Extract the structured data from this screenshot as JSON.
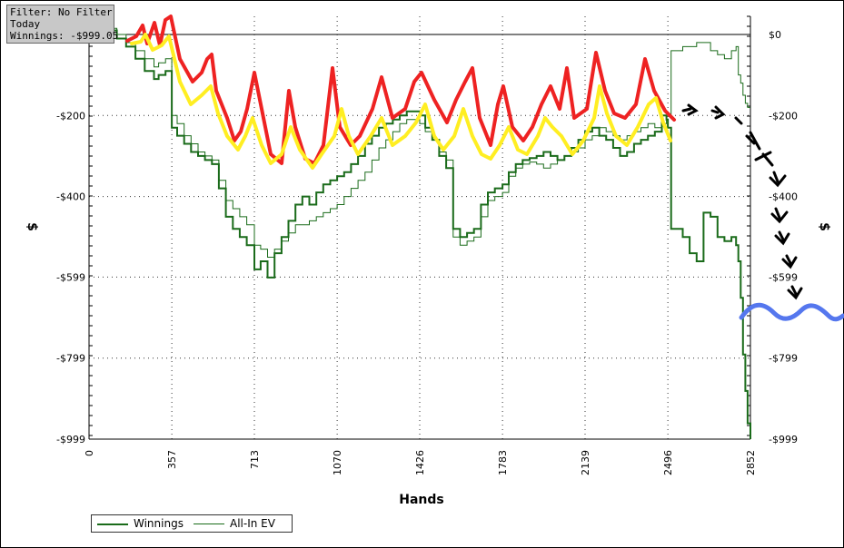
{
  "filter_box": {
    "line1": "Filter: No Filter",
    "line2": "Today",
    "line3": "Winnings: -$999.05"
  },
  "chart_data": {
    "type": "line",
    "title": "",
    "xlabel": "Hands",
    "ylabel": "$",
    "ylabel_right": "$",
    "xlim": [
      0,
      2852
    ],
    "ylim": [
      -999,
      50
    ],
    "x_ticks": [
      0,
      357,
      713,
      1070,
      1426,
      1783,
      2139,
      2496,
      2852
    ],
    "x_tick_labels": [
      "0",
      "357",
      "713",
      "1070",
      "1426",
      "1783",
      "2139",
      "2496",
      "2852"
    ],
    "y_ticks": [
      0,
      -200,
      -400,
      -599,
      -799,
      -999
    ],
    "y_tick_labels": [
      "$0",
      "-$200",
      "-$400",
      "-$599",
      "-$799",
      "-$999"
    ],
    "grid": true,
    "legend_position": "bottom-left",
    "colors": {
      "winnings": "#1a6b1a",
      "allin_ev": "#1a6b1a",
      "annot_red": "#ee2222",
      "annot_yellow": "#ffee22",
      "annot_black": "#000000",
      "annot_blue": "#5577ee"
    },
    "series": [
      {
        "name": "Winnings",
        "x": [
          0,
          40,
          80,
          120,
          160,
          200,
          240,
          280,
          300,
          330,
          357,
          380,
          410,
          440,
          470,
          500,
          530,
          560,
          590,
          620,
          650,
          680,
          713,
          740,
          770,
          800,
          830,
          860,
          890,
          920,
          950,
          980,
          1010,
          1040,
          1070,
          1100,
          1130,
          1160,
          1190,
          1220,
          1250,
          1280,
          1310,
          1340,
          1370,
          1400,
          1426,
          1450,
          1480,
          1510,
          1540,
          1570,
          1600,
          1630,
          1660,
          1690,
          1720,
          1750,
          1783,
          1810,
          1840,
          1870,
          1900,
          1930,
          1960,
          1990,
          2020,
          2050,
          2080,
          2110,
          2139,
          2170,
          2200,
          2230,
          2260,
          2290,
          2320,
          2350,
          2380,
          2410,
          2440,
          2470,
          2490,
          2496,
          2510,
          2530,
          2560,
          2590,
          2620,
          2650,
          2680,
          2710,
          2740,
          2770,
          2790,
          2800,
          2810,
          2820,
          2830,
          2840,
          2852
        ],
        "values": [
          50,
          30,
          10,
          -10,
          -30,
          -60,
          -90,
          -110,
          -100,
          -90,
          -230,
          -250,
          -270,
          -290,
          -300,
          -310,
          -320,
          -380,
          -450,
          -480,
          -500,
          -520,
          -580,
          -560,
          -600,
          -540,
          -500,
          -460,
          -420,
          -400,
          -420,
          -390,
          -370,
          -360,
          -350,
          -340,
          -320,
          -300,
          -270,
          -250,
          -230,
          -220,
          -210,
          -200,
          -190,
          -190,
          -200,
          -230,
          -260,
          -300,
          -330,
          -480,
          -500,
          -490,
          -480,
          -420,
          -390,
          -380,
          -370,
          -340,
          -320,
          -310,
          -305,
          -300,
          -290,
          -300,
          -310,
          -300,
          -280,
          -260,
          -240,
          -230,
          -250,
          -260,
          -280,
          -300,
          -290,
          -270,
          -260,
          -250,
          -240,
          -200,
          -210,
          -230,
          -480,
          -480,
          -500,
          -540,
          -560,
          -440,
          -450,
          -500,
          -510,
          -500,
          -520,
          -560,
          -650,
          -790,
          -880,
          -960,
          -999
        ]
      },
      {
        "name": "All-In EV",
        "x": [
          0,
          40,
          80,
          120,
          160,
          200,
          240,
          280,
          300,
          330,
          357,
          380,
          410,
          440,
          470,
          500,
          530,
          560,
          590,
          620,
          650,
          680,
          713,
          740,
          770,
          800,
          830,
          860,
          890,
          920,
          950,
          980,
          1010,
          1040,
          1070,
          1100,
          1130,
          1160,
          1190,
          1220,
          1250,
          1280,
          1310,
          1340,
          1370,
          1400,
          1426,
          1450,
          1480,
          1510,
          1540,
          1570,
          1600,
          1630,
          1660,
          1690,
          1720,
          1750,
          1783,
          1810,
          1840,
          1870,
          1900,
          1930,
          1960,
          1990,
          2020,
          2050,
          2080,
          2110,
          2139,
          2170,
          2200,
          2230,
          2260,
          2290,
          2320,
          2350,
          2380,
          2410,
          2440,
          2470,
          2490,
          2496,
          2510,
          2530,
          2560,
          2590,
          2620,
          2650,
          2680,
          2710,
          2740,
          2770,
          2790,
          2800,
          2810,
          2820,
          2830,
          2840,
          2852
        ],
        "values": [
          50,
          30,
          15,
          0,
          -20,
          -40,
          -60,
          -80,
          -70,
          -60,
          -200,
          -220,
          -250,
          -270,
          -290,
          -300,
          -310,
          -360,
          -410,
          -430,
          -450,
          -470,
          -520,
          -530,
          -550,
          -530,
          -510,
          -490,
          -470,
          -470,
          -460,
          -450,
          -440,
          -430,
          -420,
          -400,
          -380,
          -360,
          -340,
          -310,
          -280,
          -260,
          -240,
          -220,
          -210,
          -210,
          -220,
          -240,
          -260,
          -290,
          -310,
          -500,
          -520,
          -510,
          -500,
          -450,
          -410,
          -400,
          -390,
          -350,
          -330,
          -320,
          -315,
          -320,
          -330,
          -320,
          -310,
          -300,
          -290,
          -280,
          -260,
          -250,
          -230,
          -240,
          -250,
          -260,
          -250,
          -240,
          -230,
          -220,
          -230,
          -220,
          -200,
          -200,
          -40,
          -40,
          -30,
          -30,
          -20,
          -20,
          -40,
          -50,
          -60,
          -40,
          -30,
          -100,
          -120,
          -150,
          -170,
          -180,
          -180
        ]
      }
    ]
  },
  "legend": {
    "winnings": "Winnings",
    "allin_ev": "All-In EV"
  }
}
